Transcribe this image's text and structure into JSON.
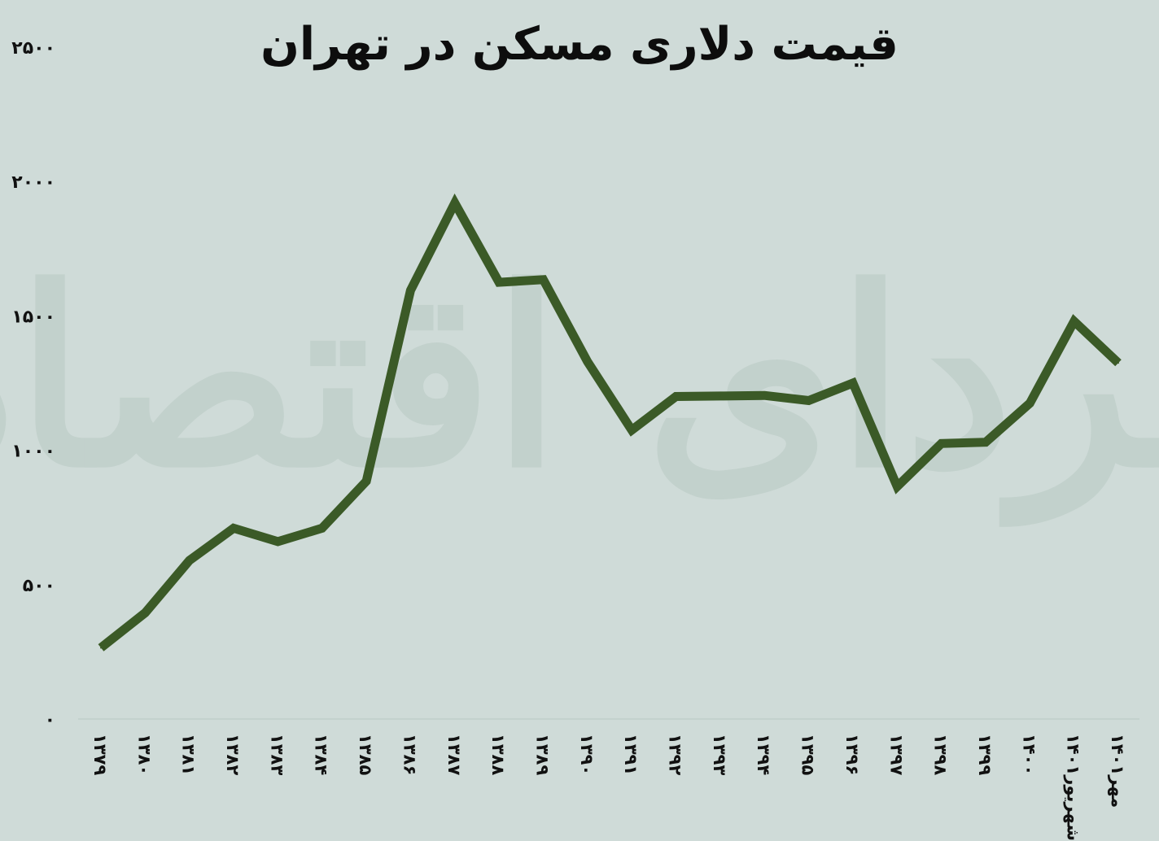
{
  "chart_data": {
    "type": "line",
    "title": "قیمت دلاری مسکن در تهران",
    "xlabel": "",
    "ylabel": "",
    "ylim": [
      0,
      2500
    ],
    "yticks": [
      "۰",
      "۵۰۰",
      "۱۰۰۰",
      "۱۵۰۰",
      "۲۰۰۰",
      "۲۵۰۰"
    ],
    "ytick_values": [
      0,
      500,
      1000,
      1500,
      2000,
      2500
    ],
    "categories": [
      "۱۳۷۹",
      "۱۳۸۰",
      "۱۳۸۱",
      "۱۳۸۲",
      "۱۳۸۳",
      "۱۳۸۴",
      "۱۳۸۵",
      "۱۳۸۶",
      "۱۳۸۷",
      "۱۳۸۸",
      "۱۳۸۹",
      "۱۳۹۰",
      "۱۳۹۱",
      "۱۳۹۲",
      "۱۳۹۳",
      "۱۳۹۴",
      "۱۳۹۵",
      "۱۳۹۶",
      "۱۳۹۷",
      "۱۳۹۸",
      "۱۳۹۹",
      "۱۴۰۰",
      "شهریور۱۴۰۱",
      "مهر۱۴۰۱"
    ],
    "series": [
      {
        "values": [
          265,
          395,
          590,
          710,
          660,
          710,
          885,
          1595,
          1920,
          1625,
          1635,
          1330,
          1075,
          1200,
          1202,
          1204,
          1185,
          1250,
          865,
          1025,
          1030,
          1175,
          1480,
          1325
        ]
      }
    ],
    "grid": false,
    "legend": "none",
    "line_color": "#3b5a27",
    "background": "#cfdbd8"
  },
  "watermark": "فردای اقتصاد"
}
